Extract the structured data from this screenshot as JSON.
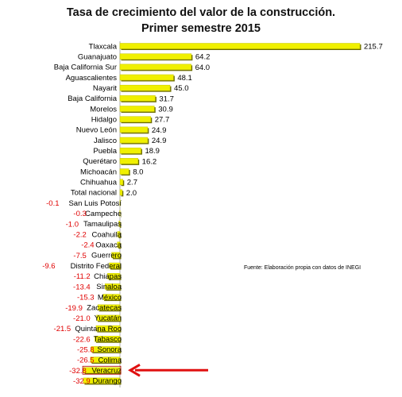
{
  "chart_data": {
    "type": "bar",
    "orientation": "horizontal",
    "title": "Tasa de crecimiento del valor de la construcción.",
    "subtitle": "Primer semestre 2015",
    "source": "Fuente: Elaboración propia con datos de INEGI",
    "categories": [
      "Tlaxcala",
      "Guanajuato",
      "Baja California Sur",
      "Aguascalientes",
      "Nayarit",
      "Baja California",
      "Morelos",
      "Hidalgo",
      "Nuevo León",
      "Jalisco",
      "Puebla",
      "Querétaro",
      "Michoacán",
      "Chihuahua",
      "Total nacional",
      "San Luis Potosí",
      "Campeche",
      "Tamaulipas",
      "Coahuila",
      "Oaxaca",
      "Guerrero",
      "Distrito Federal",
      "Chiapas",
      "Sinaloa",
      "México",
      "Zacatecas",
      "Yucatán",
      "Quintana Roo",
      "Tabasco",
      "Sonora",
      "Colima",
      "Veracruz",
      "Durango"
    ],
    "values": [
      215.7,
      64.2,
      64.0,
      48.1,
      45.0,
      31.7,
      30.9,
      27.7,
      24.9,
      24.9,
      18.9,
      16.2,
      8.0,
      2.7,
      2.0,
      -0.1,
      -0.3,
      -1.0,
      -2.2,
      -2.4,
      -7.5,
      -9.6,
      -11.2,
      -13.4,
      -15.3,
      -19.9,
      -21.0,
      -21.5,
      -22.6,
      -25.8,
      -26.5,
      -32.8,
      -32.9
    ],
    "value_labels": [
      "215.7",
      "64.2",
      "64.0",
      "48.1",
      "45.0",
      "31.7",
      "30.9",
      "27.7",
      "24.9",
      "24.9",
      "18.9",
      "16.2",
      "8.0",
      "2.7",
      "2.0",
      "-0.1",
      "-0.3",
      "-1.0",
      "-2.2",
      "-2.4",
      "-7.5",
      "-9.6",
      "-11.2",
      "-13.4",
      "-15.3",
      "-19.9",
      "-21.0",
      "-21.5",
      "-22.6",
      "-25.8",
      "-26.5",
      "-32.8",
      "-32.9"
    ],
    "highlight": "Veracruz",
    "colors": {
      "bar": "#f0f000",
      "bar_edge": "#c8c800",
      "bar_shadow": "#6b6b00",
      "negative_label": "#e00000",
      "positive_label": "#000000",
      "arrow": "#e01010"
    }
  }
}
